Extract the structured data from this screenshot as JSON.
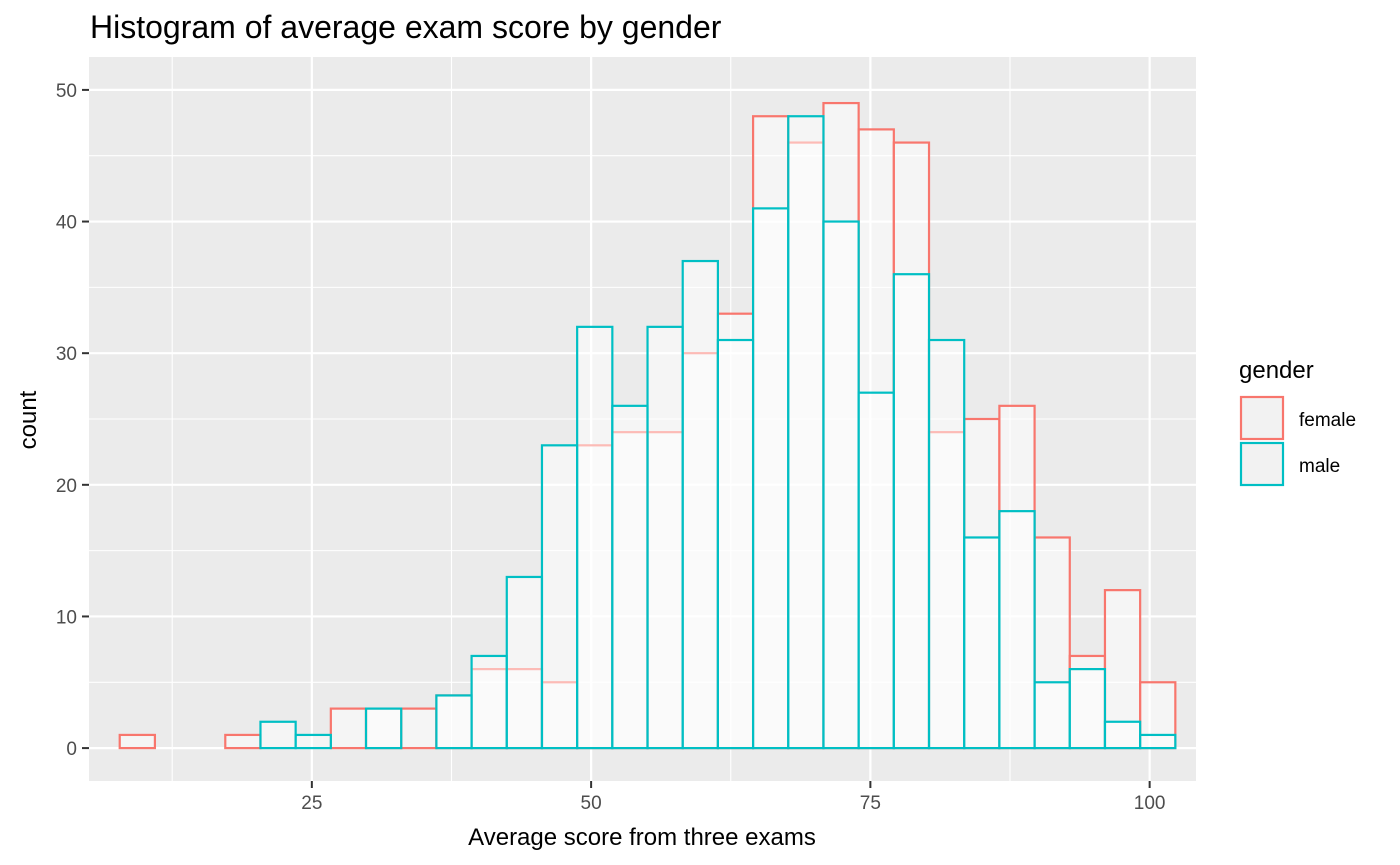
{
  "chart_data": {
    "type": "bar",
    "title": "Histogram of average exam score by gender",
    "xlabel": "Average score from three exams",
    "ylabel": "count",
    "xlim": [
      5.05,
      104.15
    ],
    "ylim": [
      -2.5,
      52.5
    ],
    "x_ticks": [
      25,
      50,
      75,
      100
    ],
    "x_tick_labels": [
      "25",
      "50",
      "75",
      "100"
    ],
    "x_minor_ticks": [
      12.5,
      37.5,
      62.5,
      87.5
    ],
    "y_ticks": [
      0,
      10,
      20,
      30,
      40,
      50
    ],
    "y_tick_labels": [
      "0",
      "10",
      "20",
      "30",
      "40",
      "50"
    ],
    "y_minor_ticks": [
      5,
      15,
      25,
      35,
      45
    ],
    "grid": true,
    "bin_edges": [
      7.8,
      10.95,
      14.1,
      17.25,
      20.4,
      23.55,
      26.7,
      29.85,
      33.0,
      36.15,
      39.3,
      42.45,
      45.6,
      48.75,
      51.9,
      55.05,
      58.2,
      61.35,
      64.5,
      67.65,
      70.8,
      73.95,
      77.1,
      80.25,
      83.4,
      86.55,
      89.7,
      92.85,
      96.0,
      99.15,
      102.3
    ],
    "series": [
      {
        "name": "female",
        "color": "#F8766D",
        "values": [
          1,
          0,
          0,
          1,
          0,
          0,
          3,
          3,
          3,
          4,
          6,
          6,
          5,
          23,
          24,
          24,
          30,
          33,
          48,
          46,
          49,
          47,
          46,
          24,
          25,
          26,
          16,
          7,
          12,
          5
        ]
      },
      {
        "name": "male",
        "color": "#00BFC4",
        "values": [
          0,
          0,
          0,
          0,
          2,
          1,
          0,
          3,
          0,
          4,
          7,
          13,
          23,
          32,
          26,
          32,
          37,
          31,
          41,
          48,
          40,
          27,
          36,
          31,
          16,
          18,
          5,
          6,
          2,
          1
        ]
      }
    ],
    "legend": {
      "title": "gender",
      "position": "right"
    }
  }
}
